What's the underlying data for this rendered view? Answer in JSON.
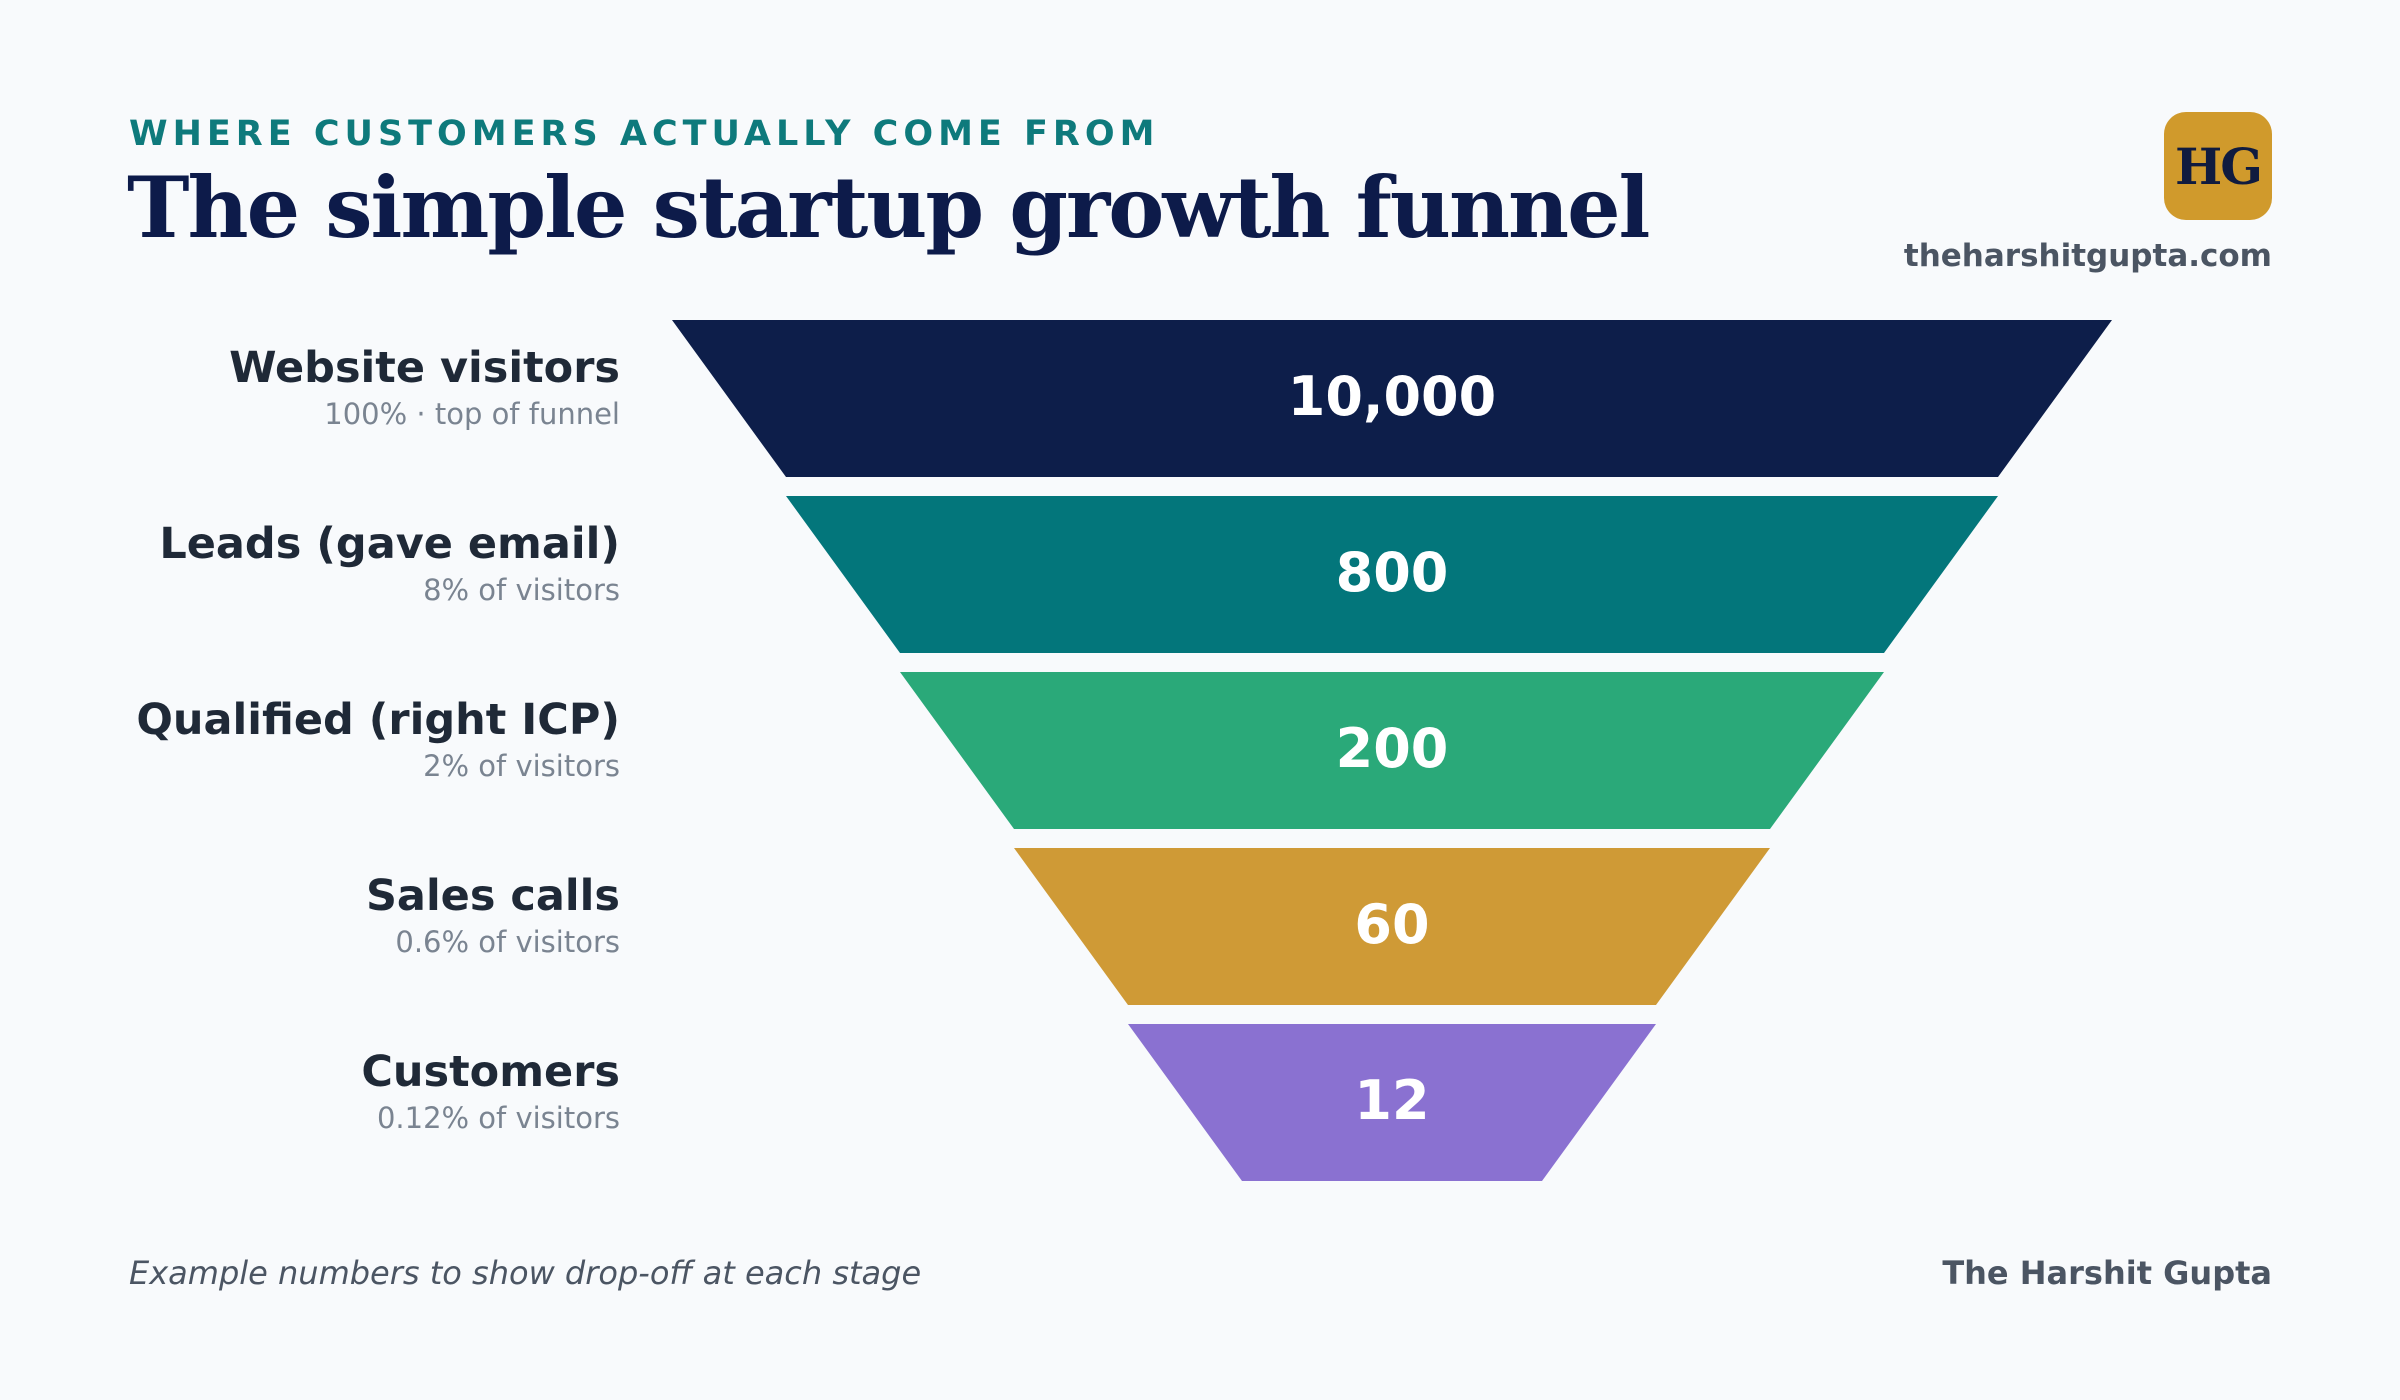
{
  "header": {
    "eyebrow": "WHERE CUSTOMERS ACTUALLY COME FROM",
    "title": "The simple startup growth funnel",
    "logo_text": "HG",
    "site": "theharshitgupta.com"
  },
  "chart_data": {
    "type": "funnel",
    "stages": [
      {
        "name": "Website visitors",
        "subtitle": "100% · top of funnel",
        "value": 10000,
        "value_label": "10,000",
        "color": "#0d1e4a"
      },
      {
        "name": "Leads (gave email)",
        "subtitle": "8% of visitors",
        "value": 800,
        "value_label": "800",
        "color": "#03767b"
      },
      {
        "name": "Qualified (right ICP)",
        "subtitle": "2% of visitors",
        "value": 200,
        "value_label": "200",
        "color": "#2aa979"
      },
      {
        "name": "Sales calls",
        "subtitle": "0.6% of visitors",
        "value": 60,
        "value_label": "60",
        "color": "#cf9a36"
      },
      {
        "name": "Customers",
        "subtitle": "0.12% of visitors",
        "value": 12,
        "value_label": "12",
        "color": "#8a71d1"
      }
    ]
  },
  "footer": {
    "note": "Example numbers to show drop-off at each stage",
    "author": "The Harshit Gupta"
  }
}
